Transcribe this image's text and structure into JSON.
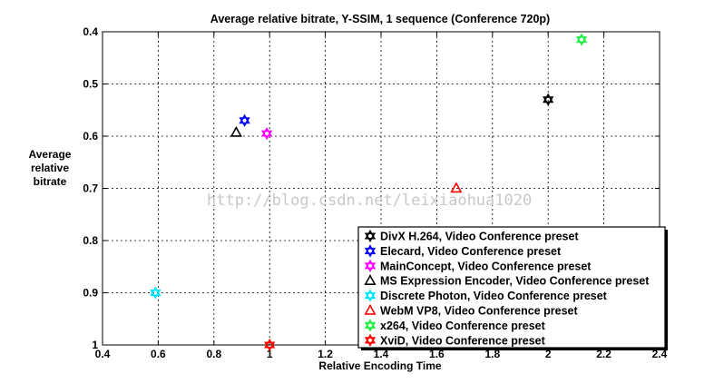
{
  "chart_data": {
    "type": "scatter",
    "title": "Average relative bitrate, Y-SSIM, 1 sequence (Conference 720p)",
    "xlabel": "Relative Encoding Time",
    "ylabel": [
      "Average",
      "relative",
      "bitrate"
    ],
    "xlim": [
      0.4,
      2.4
    ],
    "ylim": [
      0.4,
      1.0
    ],
    "y_inverted": true,
    "xticks": [
      "0.4",
      "0.6",
      "0.8",
      "1",
      "1.2",
      "1.4",
      "1.6",
      "1.8",
      "2",
      "2.2",
      "2.4"
    ],
    "yticks": [
      "0.4",
      "0.5",
      "0.6",
      "0.7",
      "0.8",
      "0.9",
      "1"
    ],
    "grid": true,
    "legend_position": "bottom-right",
    "series": [
      {
        "name": "DivX H.264, Video Conference preset",
        "marker": "hexagram",
        "color": "#000000",
        "x": 2.0,
        "y": 0.53
      },
      {
        "name": "Elecard, Video Conference preset",
        "marker": "hexagram",
        "color": "#0000ff",
        "x": 0.91,
        "y": 0.57
      },
      {
        "name": "MainConcept, Video Conference preset",
        "marker": "hexagram",
        "color": "#ff00ff",
        "x": 0.99,
        "y": 0.595
      },
      {
        "name": "MS Expression Encoder, Video Conference preset",
        "marker": "triangle",
        "color": "#000000",
        "x": 0.88,
        "y": 0.593
      },
      {
        "name": "Discrete Photon, Video Conference preset",
        "marker": "hexagram",
        "color": "#00e5ff",
        "x": 0.59,
        "y": 0.9
      },
      {
        "name": "WebM VP8, Video Conference preset",
        "marker": "triangle",
        "color": "#ff0000",
        "x": 1.67,
        "y": 0.7
      },
      {
        "name": "x264, Video Conference preset",
        "marker": "hexagram",
        "color": "#22ee44",
        "x": 2.12,
        "y": 0.415
      },
      {
        "name": "XviD, Video Conference preset",
        "marker": "hexagram",
        "color": "#ff0000",
        "x": 1.0,
        "y": 1.0
      }
    ]
  },
  "watermark": "http://blog.csdn.net/leixiaohua1020"
}
